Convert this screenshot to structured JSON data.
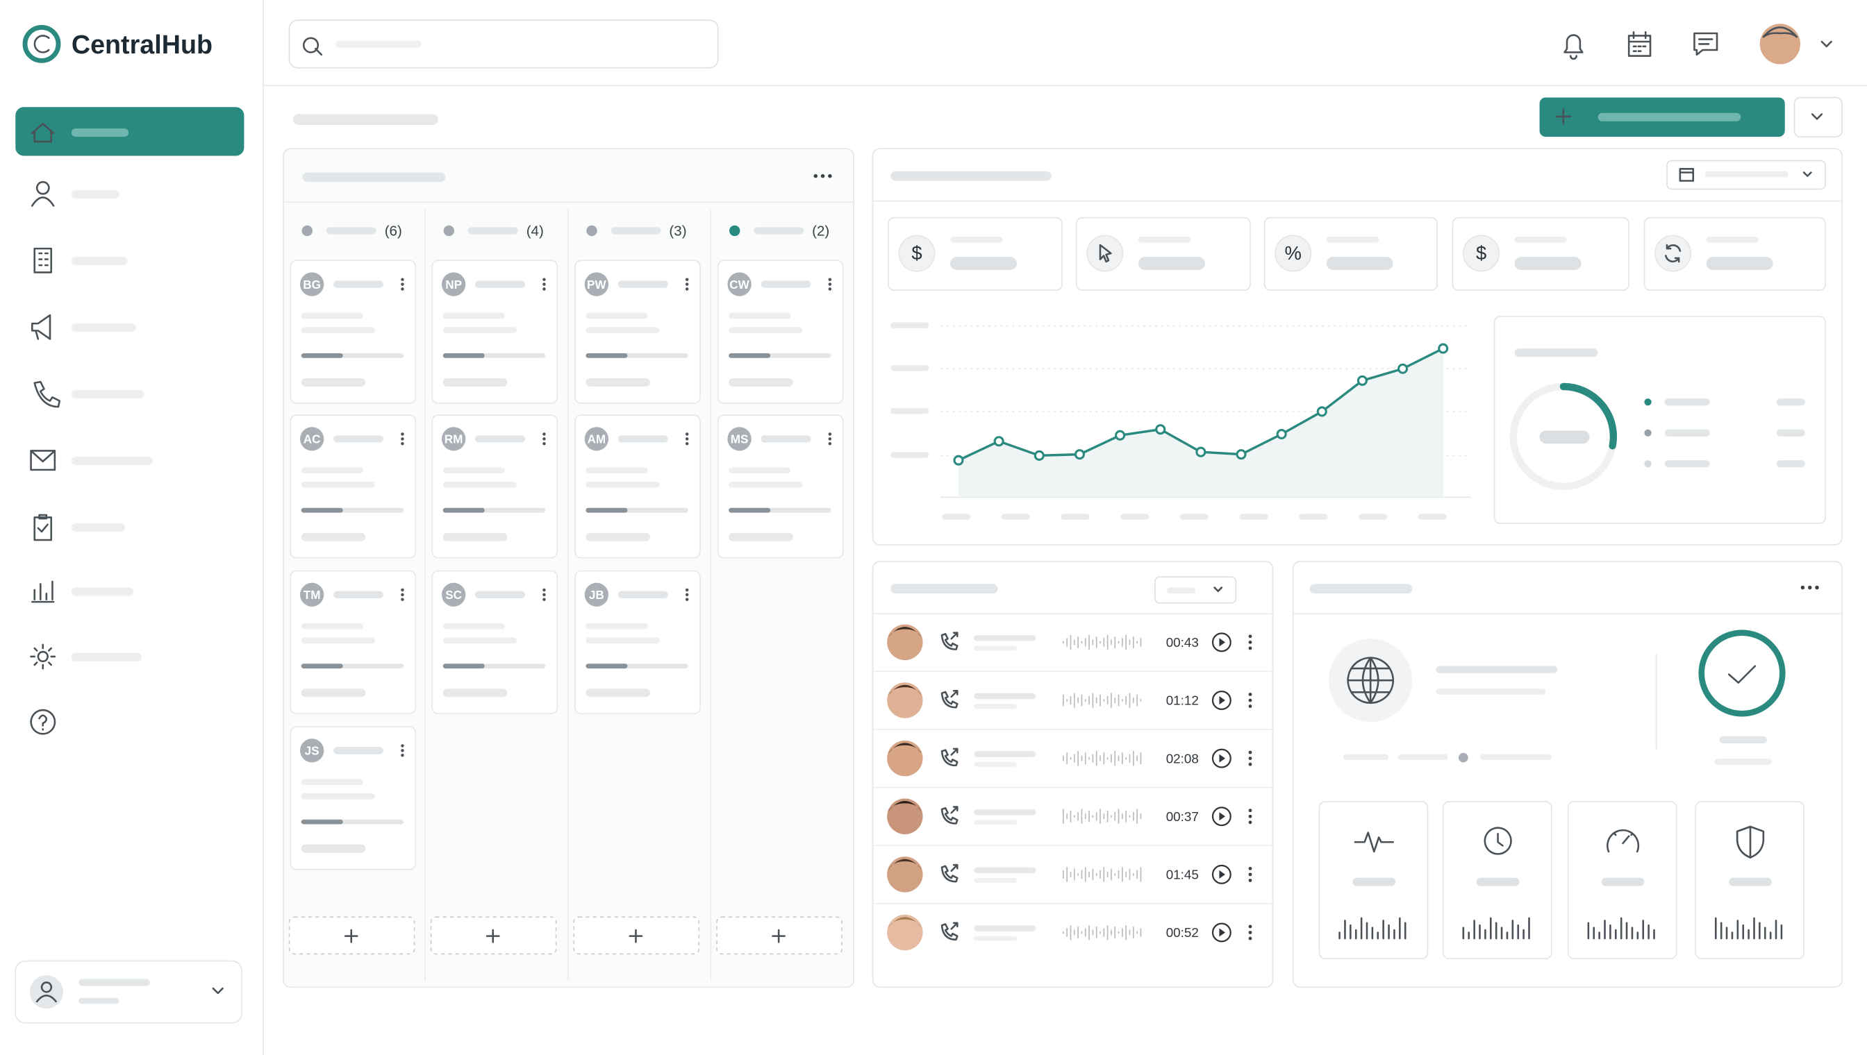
{
  "brand": "CentralHub",
  "kanban": {
    "columns": [
      {
        "count": "(6)",
        "cards": [
          "BG",
          "AC",
          "TM",
          "JS"
        ]
      },
      {
        "count": "(4)",
        "cards": [
          "NP",
          "RM",
          "SC"
        ]
      },
      {
        "count": "(3)",
        "cards": [
          "PW",
          "AM",
          "JB"
        ]
      },
      {
        "count": "(2)",
        "cards": [
          "CW",
          "MS"
        ]
      }
    ]
  },
  "chart_data": [
    {
      "type": "line",
      "values": [
        31,
        47,
        35,
        36,
        52,
        57,
        38,
        36,
        53,
        72,
        98,
        108,
        125
      ],
      "ylim": [
        0,
        145
      ],
      "color": "#2a8a80"
    },
    {
      "type": "donut",
      "values": [
        28
      ],
      "color": "#2a8a80"
    }
  ],
  "activity": {
    "durations": [
      "00:43",
      "01:12",
      "02:08",
      "00:37",
      "01:45",
      "00:52"
    ]
  }
}
